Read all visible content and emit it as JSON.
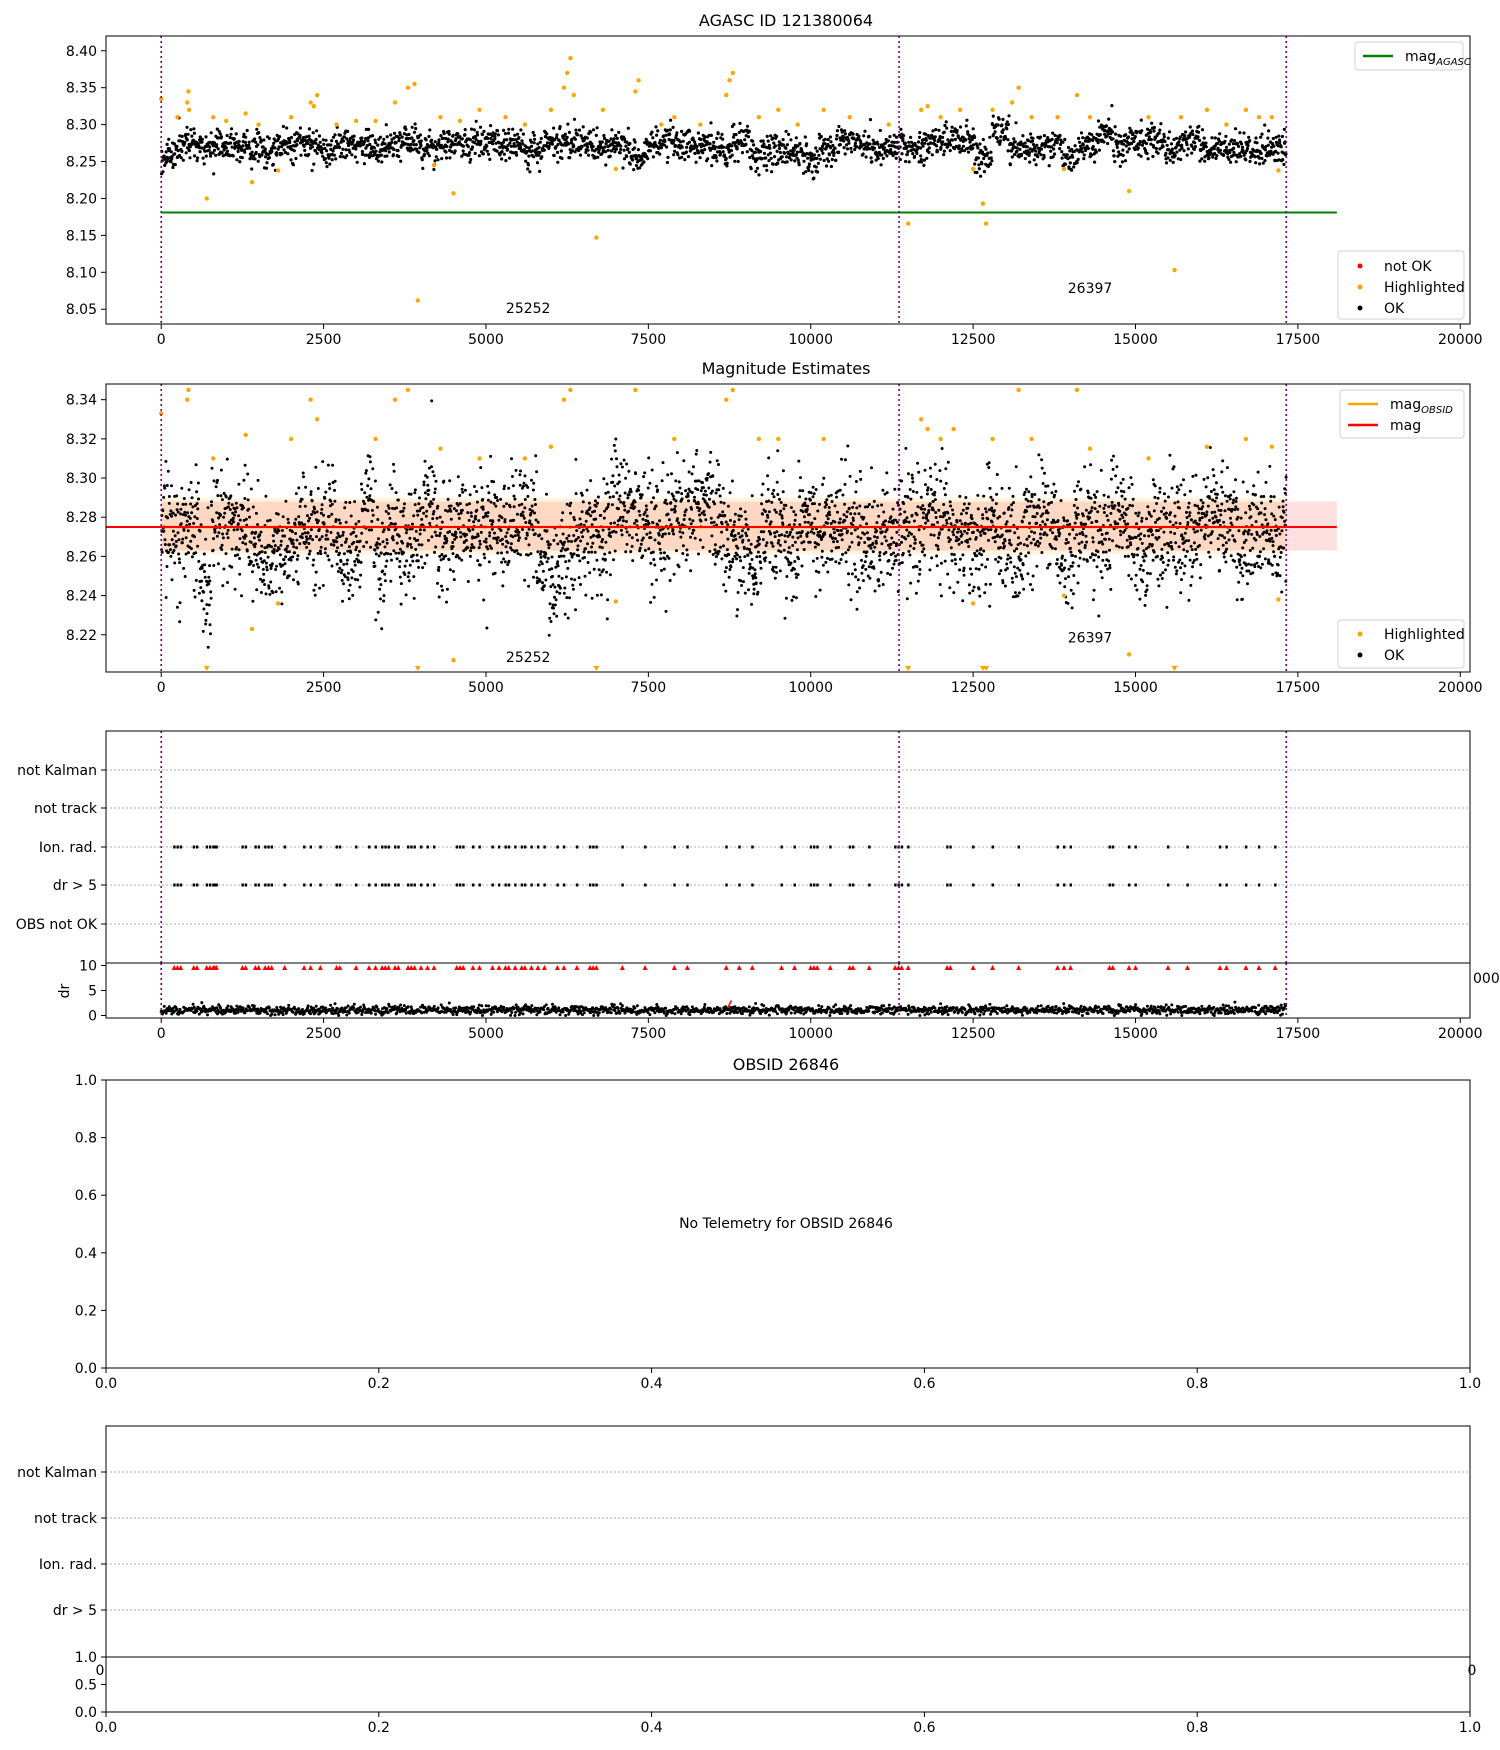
{
  "figure": {
    "no_telemetry_text": "No Telemetry for OBSID 26846"
  },
  "colors": {
    "ok": "#000000",
    "highlighted": "#ffa500",
    "not_ok": "#ff0000",
    "mag_agasc": "#008000",
    "mag": "#ff0000",
    "mag_obsid": "#ffa500",
    "obs_boundary": "#800080"
  },
  "chart_data": [
    {
      "id": "top",
      "type": "scatter",
      "title": "AGASC ID 121380064",
      "xlabel": "",
      "ylabel": "",
      "xlim": [
        -850,
        20150
      ],
      "ylim": [
        8.03,
        8.42
      ],
      "xticks": [
        0,
        2500,
        5000,
        7500,
        10000,
        12500,
        15000,
        17500,
        20000
      ],
      "yticks": [
        "8.05",
        "8.10",
        "8.15",
        "8.20",
        "8.25",
        "8.30",
        "8.35",
        "8.40"
      ],
      "mag_agasc": 8.181,
      "obs_boundaries": [
        0,
        11360,
        17320
      ],
      "obs_labels": [
        {
          "text": "25252",
          "x": 5650,
          "y": 8.045
        },
        {
          "text": "26397",
          "x": 14300,
          "y": 8.072
        }
      ],
      "ok_band": {
        "mean": 8.272,
        "spread": 0.02,
        "x_range": [
          0,
          17320
        ]
      },
      "highlighted_points": [
        [
          0,
          8.335
        ],
        [
          250,
          8.31
        ],
        [
          400,
          8.33
        ],
        [
          420,
          8.345
        ],
        [
          430,
          8.32
        ],
        [
          700,
          8.2
        ],
        [
          800,
          8.31
        ],
        [
          1000,
          8.305
        ],
        [
          1300,
          8.315
        ],
        [
          1400,
          8.222
        ],
        [
          1500,
          8.3
        ],
        [
          1800,
          8.238
        ],
        [
          2000,
          8.31
        ],
        [
          2300,
          8.33
        ],
        [
          2350,
          8.325
        ],
        [
          2400,
          8.34
        ],
        [
          2700,
          8.3
        ],
        [
          3000,
          8.305
        ],
        [
          3300,
          8.305
        ],
        [
          3600,
          8.33
        ],
        [
          3800,
          8.35
        ],
        [
          3900,
          8.355
        ],
        [
          3950,
          8.062
        ],
        [
          4200,
          8.245
        ],
        [
          4300,
          8.31
        ],
        [
          4500,
          8.207
        ],
        [
          4600,
          8.305
        ],
        [
          4900,
          8.32
        ],
        [
          5300,
          8.31
        ],
        [
          5600,
          8.3
        ],
        [
          6000,
          8.32
        ],
        [
          6200,
          8.35
        ],
        [
          6250,
          8.37
        ],
        [
          6300,
          8.39
        ],
        [
          6350,
          8.34
        ],
        [
          6700,
          8.147
        ],
        [
          6800,
          8.32
        ],
        [
          7000,
          8.24
        ],
        [
          7300,
          8.345
        ],
        [
          7350,
          8.36
        ],
        [
          7700,
          8.3
        ],
        [
          7900,
          8.31
        ],
        [
          8300,
          8.3
        ],
        [
          8700,
          8.34
        ],
        [
          8750,
          8.36
        ],
        [
          8800,
          8.37
        ],
        [
          9200,
          8.31
        ],
        [
          9500,
          8.32
        ],
        [
          9800,
          8.3
        ],
        [
          10200,
          8.32
        ],
        [
          10600,
          8.31
        ],
        [
          11200,
          8.3
        ],
        [
          11500,
          8.166
        ],
        [
          11700,
          8.32
        ],
        [
          11800,
          8.325
        ],
        [
          12000,
          8.31
        ],
        [
          12300,
          8.32
        ],
        [
          12500,
          8.24
        ],
        [
          12650,
          8.193
        ],
        [
          12700,
          8.166
        ],
        [
          12800,
          8.32
        ],
        [
          13100,
          8.33
        ],
        [
          13200,
          8.35
        ],
        [
          13400,
          8.31
        ],
        [
          13800,
          8.31
        ],
        [
          13900,
          8.24
        ],
        [
          14100,
          8.34
        ],
        [
          14300,
          8.31
        ],
        [
          14900,
          8.21
        ],
        [
          15200,
          8.31
        ],
        [
          15600,
          8.103
        ],
        [
          15700,
          8.31
        ],
        [
          16100,
          8.32
        ],
        [
          16400,
          8.3
        ],
        [
          16700,
          8.32
        ],
        [
          16900,
          8.31
        ],
        [
          17100,
          8.31
        ],
        [
          17200,
          8.238
        ]
      ],
      "legend_upper": [
        {
          "label": "mag",
          "sub": "AGASC",
          "kind": "line",
          "color": "#008000"
        }
      ],
      "legend_lower": [
        {
          "label": "not OK",
          "kind": "dot",
          "color": "#ff0000"
        },
        {
          "label": "Highlighted",
          "kind": "dot",
          "color": "#ffa500"
        },
        {
          "label": "OK",
          "kind": "dot",
          "color": "#000000"
        }
      ]
    },
    {
      "id": "mag",
      "type": "scatter",
      "title": "Magnitude Estimates",
      "xlabel": "",
      "ylabel": "",
      "xlim": [
        -850,
        20150
      ],
      "ylim": [
        8.201,
        8.348
      ],
      "xticks": [
        0,
        2500,
        5000,
        7500,
        10000,
        12500,
        15000,
        17500,
        20000
      ],
      "yticks": [
        "8.22",
        "8.24",
        "8.26",
        "8.28",
        "8.30",
        "8.32",
        "8.34"
      ],
      "mag_line": 8.275,
      "mag_band": [
        8.263,
        8.288
      ],
      "mag_obsid_line": 8.275,
      "obs_boundaries": [
        0,
        11360,
        17320
      ],
      "obs_labels": [
        {
          "text": "25252",
          "x": 5650,
          "y": 8.206
        },
        {
          "text": "26397",
          "x": 14300,
          "y": 8.216
        }
      ],
      "ok_band": {
        "mean": 8.273,
        "spread": 0.025,
        "x_range": [
          0,
          17320
        ]
      },
      "highlighted_points": [
        [
          0,
          8.333
        ],
        [
          400,
          8.34
        ],
        [
          420,
          8.345
        ],
        [
          800,
          8.31
        ],
        [
          1300,
          8.322
        ],
        [
          1400,
          8.223
        ],
        [
          1800,
          8.236
        ],
        [
          2000,
          8.32
        ],
        [
          2300,
          8.34
        ],
        [
          2400,
          8.33
        ],
        [
          3300,
          8.32
        ],
        [
          3600,
          8.34
        ],
        [
          3800,
          8.345
        ],
        [
          4300,
          8.315
        ],
        [
          4500,
          8.207
        ],
        [
          4900,
          8.31
        ],
        [
          5600,
          8.31
        ],
        [
          6000,
          8.316
        ],
        [
          6200,
          8.34
        ],
        [
          6300,
          8.345
        ],
        [
          7000,
          8.237
        ],
        [
          7300,
          8.345
        ],
        [
          7900,
          8.32
        ],
        [
          8700,
          8.34
        ],
        [
          8800,
          8.345
        ],
        [
          9200,
          8.32
        ],
        [
          9500,
          8.32
        ],
        [
          10200,
          8.32
        ],
        [
          11700,
          8.33
        ],
        [
          11800,
          8.325
        ],
        [
          12000,
          8.32
        ],
        [
          12200,
          8.325
        ],
        [
          12500,
          8.236
        ],
        [
          12800,
          8.32
        ],
        [
          13200,
          8.345
        ],
        [
          13400,
          8.32
        ],
        [
          13900,
          8.24
        ],
        [
          14100,
          8.345
        ],
        [
          14300,
          8.315
        ],
        [
          14900,
          8.21
        ],
        [
          15200,
          8.31
        ],
        [
          16100,
          8.316
        ],
        [
          16700,
          8.32
        ],
        [
          17100,
          8.316
        ],
        [
          17200,
          8.238
        ]
      ],
      "offscale_low_x": [
        700,
        3950,
        6700,
        11500,
        12650,
        12700,
        15600
      ],
      "legend_upper": [
        {
          "label": "mag",
          "sub": "OBSID",
          "kind": "line",
          "color": "#ffa500"
        },
        {
          "label": "mag",
          "sub": "",
          "kind": "line",
          "color": "#ff0000"
        }
      ],
      "legend_lower": [
        {
          "label": "Highlighted",
          "kind": "dot",
          "color": "#ffa500"
        },
        {
          "label": "OK",
          "kind": "dot",
          "color": "#000000"
        }
      ]
    },
    {
      "id": "flags",
      "type": "scatter",
      "xlabel": "",
      "ylabel": "",
      "xlim": [
        -850,
        20150
      ],
      "categories": [
        "not Kalman",
        "not track",
        "Ion. rad.",
        "dr > 5",
        "OBS not OK"
      ],
      "obs_boundaries": [
        0,
        11360,
        17320
      ],
      "flag_x": [
        200,
        250,
        300,
        500,
        550,
        700,
        750,
        800,
        820,
        850,
        1250,
        1300,
        1450,
        1500,
        1600,
        1650,
        1700,
        1900,
        2200,
        2300,
        2450,
        2700,
        2750,
        3000,
        3200,
        3300,
        3400,
        3450,
        3500,
        3600,
        3650,
        3800,
        3850,
        3900,
        4000,
        4100,
        4200,
        4550,
        4600,
        4650,
        4800,
        4900,
        5100,
        5200,
        5300,
        5350,
        5450,
        5550,
        5600,
        5700,
        5800,
        5900,
        6100,
        6200,
        6400,
        6600,
        6650,
        6700,
        7100,
        7450,
        7900,
        8100,
        8700,
        8900,
        9100,
        9550,
        9750,
        10000,
        10050,
        10100,
        10300,
        10600,
        10650,
        10900,
        11300,
        11350,
        11400,
        11500,
        12100,
        12150,
        12500,
        12800,
        13200,
        13800,
        13900,
        14000,
        14600,
        14650,
        14900,
        15000,
        15500,
        15800,
        16300,
        16400,
        16700,
        16900,
        17150
      ],
      "flag_rows": [
        "Ion. rad.",
        "dr > 5"
      ]
    },
    {
      "id": "dr",
      "type": "line",
      "xlabel": "",
      "ylabel": "dr",
      "xlim": [
        -850,
        20150
      ],
      "ylim": [
        -0.5,
        10.5
      ],
      "yticks": [
        "0",
        "5",
        "10"
      ],
      "xticks": [
        0,
        2500,
        5000,
        7500,
        10000,
        12500,
        15000,
        17500,
        20000
      ],
      "obs_boundaries": [
        0,
        11360,
        17320
      ],
      "dr_level": 1.1,
      "offscale_high_x": [
        200,
        250,
        300,
        500,
        550,
        700,
        750,
        800,
        820,
        850,
        1250,
        1300,
        1450,
        1500,
        1600,
        1650,
        1700,
        1900,
        2200,
        2300,
        2450,
        2700,
        2750,
        3000,
        3200,
        3300,
        3400,
        3450,
        3500,
        3600,
        3650,
        3800,
        3850,
        3900,
        4000,
        4100,
        4200,
        4550,
        4600,
        4650,
        4800,
        4900,
        5100,
        5200,
        5300,
        5350,
        5450,
        5550,
        5600,
        5700,
        5800,
        5900,
        6100,
        6200,
        6400,
        6600,
        6650,
        6700,
        7100,
        7450,
        7900,
        8100,
        8700,
        8900,
        9100,
        9550,
        9750,
        10000,
        10050,
        10100,
        10300,
        10600,
        10650,
        10900,
        11300,
        11350,
        11400,
        11500,
        12100,
        12150,
        12500,
        12800,
        13200,
        13800,
        13900,
        14000,
        14600,
        14650,
        14900,
        15000,
        15500,
        15800,
        16300,
        16400,
        16700,
        16900,
        17150
      ],
      "clipped_tick_text": "000"
    },
    {
      "id": "obsid",
      "type": "scatter",
      "title": "OBSID 26846",
      "xlabel": "",
      "ylabel": "",
      "xlim": [
        0,
        1
      ],
      "ylim": [
        0,
        1
      ],
      "xticks": [
        "0.0",
        "0.2",
        "0.4",
        "0.6",
        "0.8",
        "1.0"
      ],
      "yticks": [
        "0.0",
        "0.2",
        "0.4",
        "0.6",
        "0.8",
        "1.0"
      ]
    },
    {
      "id": "flags2",
      "type": "scatter",
      "xlabel": "",
      "ylabel": "",
      "categories": [
        "not Kalman",
        "not track",
        "Ion. rad.",
        "dr > 5"
      ],
      "clipped_tick_left": "0",
      "clipped_tick_right": "0"
    },
    {
      "id": "dr2",
      "type": "line",
      "xlabel": "",
      "ylabel": "",
      "xlim": [
        0,
        1
      ],
      "ylim": [
        0,
        1
      ],
      "yticks": [
        "0.0",
        "0.5",
        "1.0"
      ],
      "xticks": [
        "0.0",
        "0.2",
        "0.4",
        "0.6",
        "0.8",
        "1.0"
      ]
    }
  ]
}
